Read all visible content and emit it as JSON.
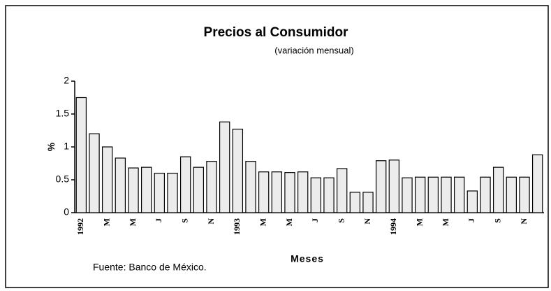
{
  "chart_data": {
    "type": "bar",
    "title": "Precios al Consumidor",
    "subtitle": "(variación mensual)",
    "y_label": "%",
    "x_label": "Meses",
    "source": "Fuente: Banco de México.",
    "categories": [
      "1992",
      null,
      "M",
      null,
      "M",
      null,
      "J",
      null,
      "S",
      null,
      "N",
      null,
      "1993",
      null,
      "M",
      null,
      "M",
      null,
      "J",
      null,
      "S",
      null,
      "N",
      null,
      "1994",
      null,
      "M",
      null,
      "M",
      null,
      "J",
      null,
      "S",
      null,
      "N",
      null
    ],
    "values": [
      1.75,
      1.2,
      1.0,
      0.83,
      0.68,
      0.69,
      0.6,
      0.6,
      0.85,
      0.69,
      0.78,
      1.38,
      1.27,
      0.78,
      0.62,
      0.62,
      0.61,
      0.62,
      0.53,
      0.53,
      0.67,
      0.31,
      0.31,
      0.79,
      0.8,
      0.53,
      0.54,
      0.54,
      0.54,
      0.54,
      0.33,
      0.54,
      0.69,
      0.54,
      0.54,
      0.88
    ],
    "color": "#ececec",
    "ylim": [
      0,
      2
    ],
    "yticks": [
      0,
      0.5,
      1,
      1.5,
      2
    ],
    "grid": false
  }
}
